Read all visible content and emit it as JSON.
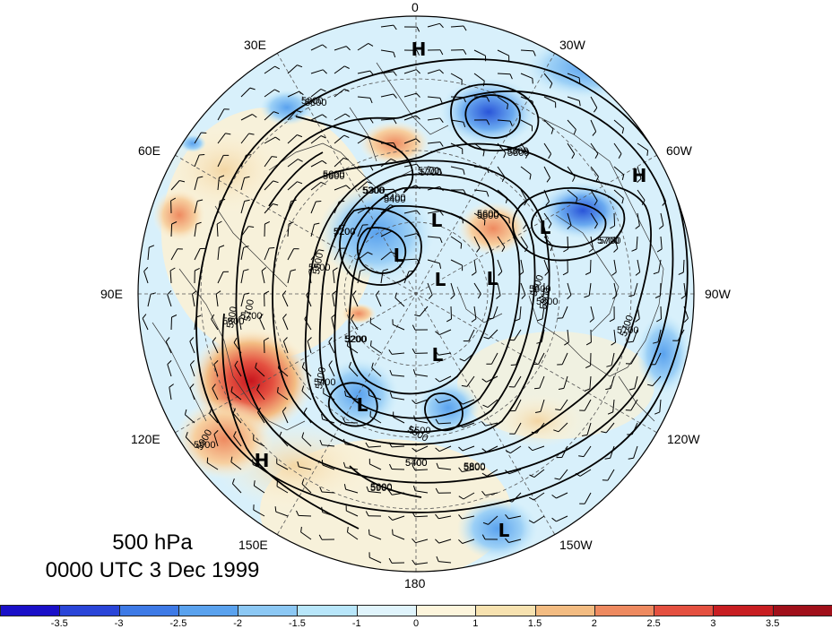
{
  "title": {
    "level": "500 hPa",
    "time": "0000 UTC 3 Dec 1999"
  },
  "longitude_labels": [
    {
      "id": "lon-0",
      "text": "0"
    },
    {
      "id": "lon-30w",
      "text": "30W"
    },
    {
      "id": "lon-60w",
      "text": "60W"
    },
    {
      "id": "lon-90w",
      "text": "90W"
    },
    {
      "id": "lon-120w",
      "text": "120W"
    },
    {
      "id": "lon-150w",
      "text": "150W"
    },
    {
      "id": "lon-180",
      "text": "180"
    },
    {
      "id": "lon-150e",
      "text": "150E"
    },
    {
      "id": "lon-120e",
      "text": "120E"
    },
    {
      "id": "lon-90e",
      "text": "90E"
    },
    {
      "id": "lon-60e",
      "text": "60E"
    },
    {
      "id": "lon-30e",
      "text": "30E"
    }
  ],
  "pressure_centers": [
    {
      "type": "H"
    },
    {
      "type": "H"
    },
    {
      "type": "H"
    },
    {
      "type": "L"
    },
    {
      "type": "L"
    },
    {
      "type": "L"
    },
    {
      "type": "L"
    },
    {
      "type": "L"
    },
    {
      "type": "L"
    },
    {
      "type": "L"
    },
    {
      "type": "L"
    }
  ],
  "contour_labels": [
    "5800",
    "5700",
    "5600",
    "5800",
    "5700",
    "5300",
    "5400",
    "5200",
    "5500",
    "5800",
    "5700",
    "5600",
    "5400",
    "5200",
    "5600",
    "5900",
    "5800",
    "5700",
    "5400",
    "5500",
    "5800",
    "5600"
  ],
  "colorbar": {
    "colors": [
      "#1a10c8",
      "#2a45d8",
      "#3e7ae6",
      "#5aa2ee",
      "#8cc8f4",
      "#b8e6fa",
      "#e0f4fc",
      "#fdf5dc",
      "#f7e2b0",
      "#f3bc82",
      "#ee8a60",
      "#e45040",
      "#c81e22",
      "#a0101a"
    ],
    "ticks": [
      "-3.5",
      "-3",
      "-2.5",
      "-2",
      "-1.5",
      "-1",
      "0",
      "1",
      "1.5",
      "2",
      "2.5",
      "3",
      "3.5"
    ]
  }
}
